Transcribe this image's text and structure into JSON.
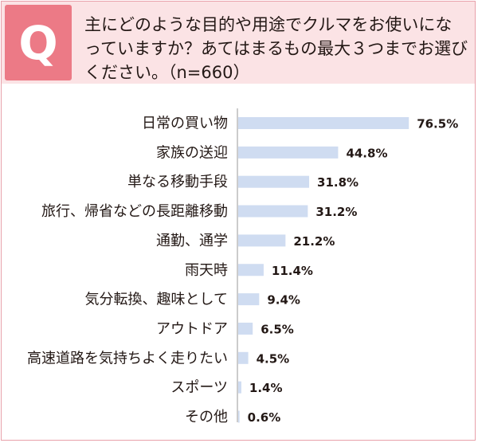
{
  "header": {
    "badge": "Q",
    "question": "主にどのような目的や用途でクルマをお使いになっていますか？あてはまるもの最大３つまでお選びください。（n=660）"
  },
  "colors": {
    "border": "#e8a1aa",
    "header_bg": "#fbe3e5",
    "badge": "#ec7a86",
    "bar": "#cfdcf1",
    "axis": "#9a9a9a"
  },
  "chart_data": {
    "type": "bar",
    "orientation": "horizontal",
    "categories": [
      "日常の買い物",
      "家族の送迎",
      "単なる移動手段",
      "旅行、帰省などの長距離移動",
      "通勤、通学",
      "雨天時",
      "気分転換、趣味として",
      "アウトドア",
      "高速道路を気持ちよく走りたい",
      "スポーツ",
      "その他"
    ],
    "values": [
      76.5,
      44.8,
      31.8,
      31.2,
      21.2,
      11.4,
      9.4,
      6.5,
      4.5,
      1.4,
      0.6
    ],
    "value_labels": [
      "76.5%",
      "44.8%",
      "31.8%",
      "31.2%",
      "21.2%",
      "11.4%",
      "9.4%",
      "6.5%",
      "4.5%",
      "1.4%",
      "0.6%"
    ],
    "xlim": [
      0,
      100
    ],
    "grid": false,
    "legend": "none"
  }
}
